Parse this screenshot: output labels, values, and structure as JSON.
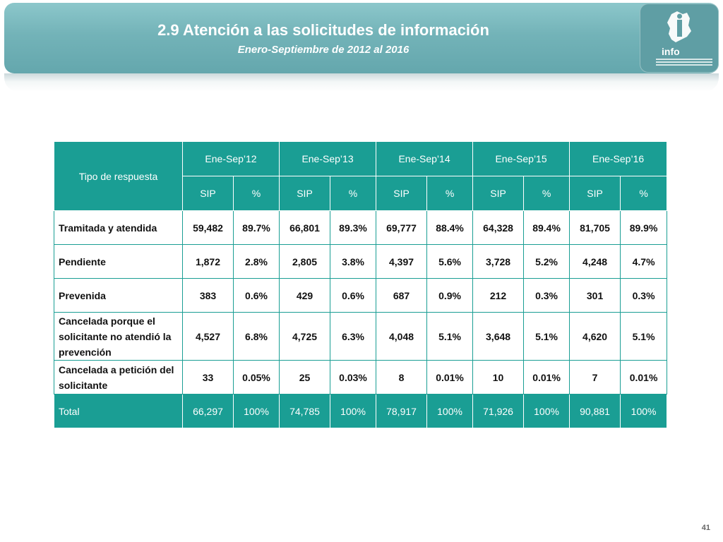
{
  "header": {
    "title": "2.9 Atención a las solicitudes de información",
    "subtitle": "Enero-Septiembre de 2012 al 2016",
    "logo_text": "info"
  },
  "table": {
    "corner_label": "Tipo de respuesta",
    "periods": [
      "Ene-Sep’12",
      "Ene-Sep’13",
      "Ene-Sep’14",
      "Ene-Sep’15",
      "Ene-Sep’16"
    ],
    "sub_labels": {
      "count": "SIP",
      "pct": "%"
    },
    "rows": [
      {
        "label": "Tramitada y atendida",
        "cells": [
          "59,482",
          "89.7%",
          "66,801",
          "89.3%",
          "69,777",
          "88.4%",
          "64,328",
          "89.4%",
          "81,705",
          "89.9%"
        ]
      },
      {
        "label": "Pendiente",
        "cells": [
          "1,872",
          "2.8%",
          "2,805",
          "3.8%",
          "4,397",
          "5.6%",
          "3,728",
          "5.2%",
          "4,248",
          "4.7%"
        ]
      },
      {
        "label": "Prevenida",
        "cells": [
          "383",
          "0.6%",
          "429",
          "0.6%",
          "687",
          "0.9%",
          "212",
          "0.3%",
          "301",
          "0.3%"
        ]
      },
      {
        "label": "Cancelada porque el solicitante no atendió la prevención",
        "cells": [
          "4,527",
          "6.8%",
          "4,725",
          "6.3%",
          "4,048",
          "5.1%",
          "3,648",
          "5.1%",
          "4,620",
          "5.1%"
        ]
      },
      {
        "label": "Cancelada a petición del solicitante",
        "cells": [
          "33",
          "0.05%",
          "25",
          "0.03%",
          "8",
          "0.01%",
          "10",
          "0.01%",
          "7",
          "0.01%"
        ]
      }
    ],
    "total": {
      "label": "Total",
      "cells": [
        "66,297",
        "100%",
        "74,785",
        "100%",
        "78,917",
        "100%",
        "71,926",
        "100%",
        "90,881",
        "100%"
      ]
    }
  },
  "footer": {
    "page_number": "41"
  },
  "colors": {
    "banner": "#73b3b8",
    "table_header": "#1a9e94"
  }
}
